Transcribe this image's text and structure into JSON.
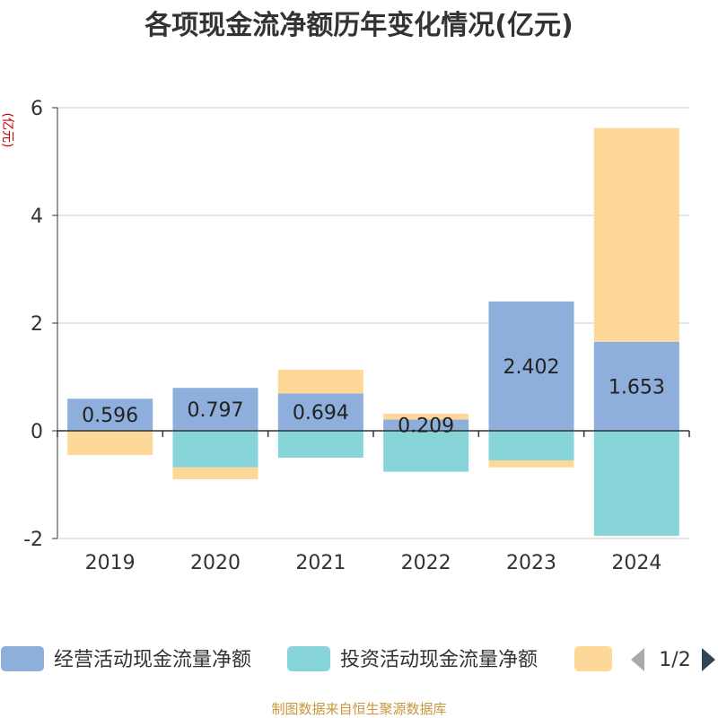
{
  "chart_data": {
    "type": "bar",
    "stacked": true,
    "title": "各项现金流净额历年变化情况(亿元)",
    "ylabel": "(亿元)",
    "ylim": [
      -2,
      6
    ],
    "yticks": [
      6,
      4,
      2,
      0,
      -2
    ],
    "grid": true,
    "legend_position": "bottom",
    "categories": [
      "2019",
      "2020",
      "2021",
      "2022",
      "2023",
      "2024"
    ],
    "series": [
      {
        "name": "经营活动现金流量净额",
        "color": "#8eaedb",
        "values": [
          0.596,
          0.797,
          0.694,
          0.209,
          2.402,
          1.653
        ],
        "labels": [
          "0.596",
          "0.797",
          "0.694",
          "0.209",
          "2.402",
          "1.653"
        ]
      },
      {
        "name": "投资活动现金流量净额",
        "color": "#87d5d8",
        "values": [
          0,
          -0.68,
          -0.5,
          -0.76,
          -0.55,
          -1.95
        ]
      },
      {
        "name": "",
        "color": "#fdd898",
        "values": [
          -0.45,
          -0.22,
          0.44,
          0.11,
          -0.13,
          3.97
        ]
      }
    ],
    "legend_pager": "1/2"
  },
  "source_note": "制图数据来自恒生聚源数据库"
}
